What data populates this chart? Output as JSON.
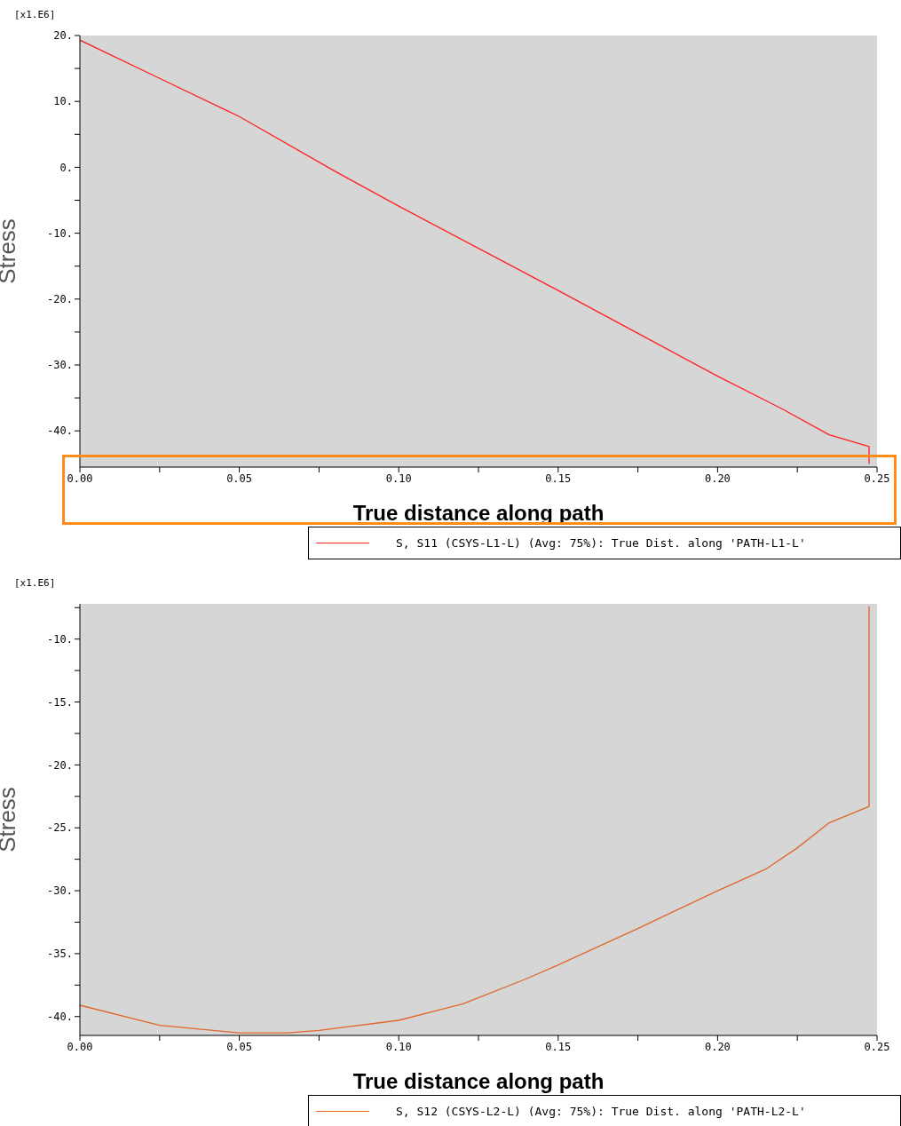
{
  "chart_data": [
    {
      "type": "line",
      "xlabel": "True distance along path",
      "ylabel": "Stress",
      "annotations": [
        "[x1.E6]"
      ],
      "legend": "bottom right",
      "grid": false,
      "marker": "none",
      "line_style": "solid",
      "xlim": [
        0,
        0.25
      ],
      "ylim": [
        -45.5,
        20
      ],
      "xticks": [
        {
          "value": 0,
          "label": "0.00"
        },
        {
          "value": 0.025,
          "label": null
        },
        {
          "value": 0.05,
          "label": "0.05"
        },
        {
          "value": 0.075,
          "label": null
        },
        {
          "value": 0.1,
          "label": "0.10"
        },
        {
          "value": 0.125,
          "label": null
        },
        {
          "value": 0.15,
          "label": "0.15"
        },
        {
          "value": 0.175,
          "label": null
        },
        {
          "value": 0.2,
          "label": "0.20"
        },
        {
          "value": 0.225,
          "label": null
        },
        {
          "value": 0.25,
          "label": "0.25"
        }
      ],
      "yticks": [
        {
          "value": -40,
          "label": "-40."
        },
        {
          "value": -35,
          "label": null
        },
        {
          "value": -30,
          "label": "-30."
        },
        {
          "value": -25,
          "label": null
        },
        {
          "value": -20,
          "label": "-20."
        },
        {
          "value": -15,
          "label": null
        },
        {
          "value": -10,
          "label": "-10."
        },
        {
          "value": -5,
          "label": null
        },
        {
          "value": 0,
          "label": "0."
        },
        {
          "value": 5,
          "label": null
        },
        {
          "value": 10,
          "label": "10."
        },
        {
          "value": 15,
          "label": null
        },
        {
          "value": 20,
          "label": "20."
        }
      ],
      "series": [
        {
          "name": "S, S11 (CSYS-L1-L) (Avg: 75%): True Dist. along 'PATH-L1-L'",
          "color": "#ff2020",
          "x": [
            0,
            0.025,
            0.05,
            0.08,
            0.1,
            0.125,
            0.15,
            0.175,
            0.2,
            0.22,
            0.235,
            0.2475,
            0.2475
          ],
          "values": [
            19.3,
            13.5,
            7.7,
            -0.6,
            -5.9,
            -12.3,
            -18.7,
            -25.2,
            -31.7,
            -36.6,
            -40.6,
            -42.4,
            -45.0
          ]
        }
      ]
    },
    {
      "type": "line",
      "xlabel": "True distance along path",
      "ylabel": "Stress",
      "annotations": [
        "[x1.E6]"
      ],
      "legend": "bottom right",
      "grid": false,
      "marker": "none",
      "line_style": "solid",
      "xlim": [
        0,
        0.25
      ],
      "ylim": [
        -41.5,
        -7.2
      ],
      "xticks": [
        {
          "value": 0,
          "label": "0.00"
        },
        {
          "value": 0.025,
          "label": null
        },
        {
          "value": 0.05,
          "label": "0.05"
        },
        {
          "value": 0.075,
          "label": null
        },
        {
          "value": 0.1,
          "label": "0.10"
        },
        {
          "value": 0.125,
          "label": null
        },
        {
          "value": 0.15,
          "label": "0.15"
        },
        {
          "value": 0.175,
          "label": null
        },
        {
          "value": 0.2,
          "label": "0.20"
        },
        {
          "value": 0.225,
          "label": null
        },
        {
          "value": 0.25,
          "label": "0.25"
        }
      ],
      "yticks": [
        {
          "value": -40,
          "label": "-40."
        },
        {
          "value": -37.5,
          "label": null
        },
        {
          "value": -35,
          "label": "-35."
        },
        {
          "value": -32.5,
          "label": null
        },
        {
          "value": -30,
          "label": "-30."
        },
        {
          "value": -27.5,
          "label": null
        },
        {
          "value": -25,
          "label": "-25."
        },
        {
          "value": -22.5,
          "label": null
        },
        {
          "value": -20,
          "label": "-20."
        },
        {
          "value": -17.5,
          "label": null
        },
        {
          "value": -15,
          "label": "-15."
        },
        {
          "value": -12.5,
          "label": null
        },
        {
          "value": -10,
          "label": "-10."
        },
        {
          "value": -7.5,
          "label": null
        }
      ],
      "series": [
        {
          "name": "S, S12 (CSYS-L2-L) (Avg: 75%): True Dist. along 'PATH-L2-L'",
          "color": "#e0662a",
          "x": [
            0,
            0.025,
            0.05,
            0.065,
            0.075,
            0.1,
            0.12,
            0.14,
            0.15,
            0.175,
            0.2,
            0.215,
            0.225,
            0.235,
            0.2475,
            0.2475
          ],
          "values": [
            -39.1,
            -40.7,
            -41.3,
            -41.3,
            -41.1,
            -40.3,
            -39.0,
            -37.0,
            -35.9,
            -33.0,
            -30.0,
            -28.3,
            -26.6,
            -24.6,
            -23.3,
            -7.4
          ]
        }
      ]
    }
  ]
}
